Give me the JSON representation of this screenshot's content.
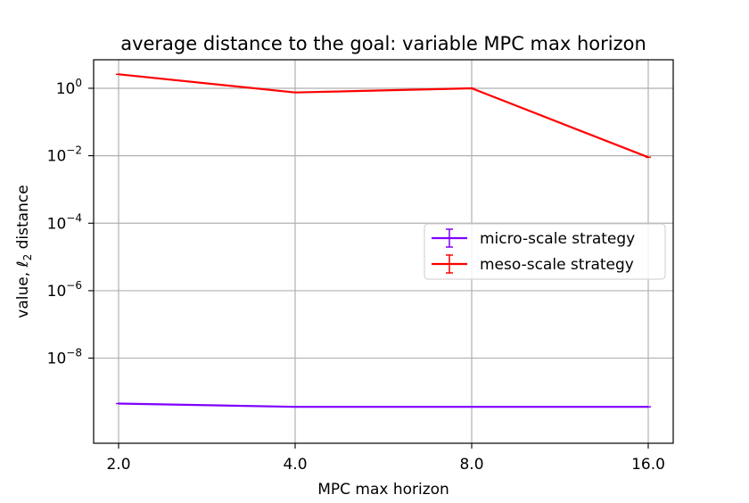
{
  "chart_data": {
    "type": "line",
    "title": "average distance to the goal: variable MPC max horizon",
    "xlabel": "MPC max horizon",
    "ylabel_prefix": "value, ",
    "ylabel_ell": "ℓ",
    "ylabel_sub": "2",
    "ylabel_suffix": " distance",
    "x_categories": [
      "2.0",
      "4.0",
      "8.0",
      "16.0"
    ],
    "y_scale": "log",
    "y_ticks": [
      {
        "base": "10",
        "exp": "0",
        "value": 1
      },
      {
        "base": "10",
        "exp": "−2",
        "value": 0.01
      },
      {
        "base": "10",
        "exp": "−4",
        "value": 0.0001
      },
      {
        "base": "10",
        "exp": "−6",
        "value": 1e-06
      },
      {
        "base": "10",
        "exp": "−8",
        "value": 1e-08
      }
    ],
    "ylim": [
      3e-11,
      7
    ],
    "grid": true,
    "legend_position": "center-right",
    "series": [
      {
        "name": "micro-scale strategy",
        "color": "#7f00ff",
        "values": [
          4.5e-10,
          3.6e-10,
          3.6e-10,
          3.6e-10
        ]
      },
      {
        "name": "meso-scale strategy",
        "color": "#ff0000",
        "values": [
          2.6,
          0.75,
          1.0,
          0.009
        ]
      }
    ]
  }
}
